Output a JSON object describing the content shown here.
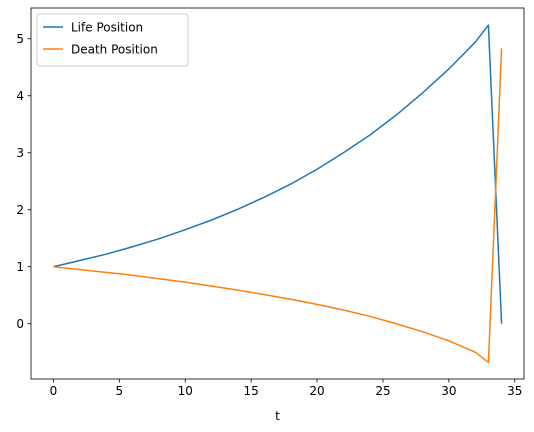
{
  "chart_data": {
    "type": "line",
    "xlabel": "t",
    "ylabel": "",
    "xlim": [
      -1.7,
      35.7
    ],
    "ylim": [
      -0.97,
      5.54
    ],
    "xticks": [
      0,
      5,
      10,
      15,
      20,
      25,
      30,
      35
    ],
    "yticks": [
      0,
      1,
      2,
      3,
      4,
      5
    ],
    "grid": false,
    "legend_position": "top-left",
    "series": [
      {
        "name": "Life Position",
        "color": "#1f77b4",
        "x": [
          0,
          2,
          4,
          6,
          8,
          10,
          12,
          14,
          16,
          18,
          20,
          22,
          24,
          26,
          28,
          30,
          32,
          33,
          34
        ],
        "y": [
          1.0,
          1.11,
          1.22,
          1.35,
          1.49,
          1.65,
          1.82,
          2.01,
          2.22,
          2.45,
          2.71,
          3.0,
          3.31,
          3.66,
          4.05,
          4.47,
          4.94,
          5.24,
          0.0
        ]
      },
      {
        "name": "Death Position",
        "color": "#ff7f0e",
        "x": [
          0,
          2,
          4,
          6,
          8,
          10,
          12,
          14,
          16,
          18,
          20,
          22,
          24,
          26,
          28,
          30,
          32,
          33,
          34
        ],
        "y": [
          1.0,
          0.95,
          0.9,
          0.85,
          0.79,
          0.73,
          0.66,
          0.59,
          0.51,
          0.43,
          0.34,
          0.24,
          0.13,
          0.0,
          -0.14,
          -0.3,
          -0.5,
          -0.68,
          4.83
        ]
      }
    ]
  }
}
